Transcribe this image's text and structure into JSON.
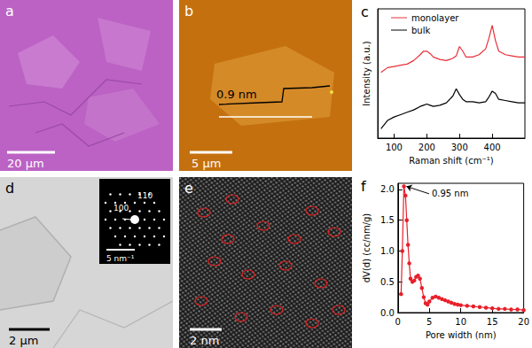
{
  "images": {
    "a": {
      "panel": "a",
      "scale_bar": "20 μm"
    },
    "b": {
      "panel": "b",
      "annotation": "0.9 nm",
      "scale_bar": "5 μm"
    },
    "d": {
      "panel": "d",
      "scale_bar": "2 μm",
      "inset": {
        "labels": [
          "110",
          "100"
        ],
        "scale_bar": "5 nm⁻¹"
      }
    },
    "e": {
      "panel": "e",
      "scale_bar": "2 nm"
    }
  },
  "chart_data": [
    {
      "panel": "c",
      "type": "line",
      "x_label": "Raman shift (cm⁻¹)",
      "y_label": "Intensity (a.u.)",
      "x": [
        60,
        80,
        100,
        120,
        140,
        160,
        180,
        190,
        200,
        210,
        220,
        240,
        260,
        280,
        290,
        300,
        310,
        320,
        340,
        360,
        380,
        390,
        400,
        410,
        420,
        440,
        460,
        480,
        500
      ],
      "series": [
        {
          "name": "monolayer",
          "color": "#e8303a",
          "marker": "none",
          "line_style": "solid",
          "values": [
            5.6,
            6.0,
            6.1,
            6.2,
            6.3,
            6.6,
            7.1,
            7.4,
            7.4,
            7.2,
            6.9,
            6.7,
            6.6,
            6.8,
            7.0,
            7.8,
            7.4,
            6.9,
            6.9,
            7.1,
            7.6,
            8.5,
            9.6,
            8.3,
            7.4,
            7.1,
            7.0,
            6.9,
            6.9
          ]
        },
        {
          "name": "bulk",
          "color": "#000000",
          "marker": "none",
          "line_style": "solid",
          "values": [
            0.8,
            1.5,
            1.8,
            2.0,
            2.2,
            2.4,
            2.7,
            2.8,
            2.9,
            2.8,
            2.7,
            2.8,
            3.0,
            3.6,
            4.2,
            3.7,
            3.3,
            3.1,
            3.1,
            3.0,
            3.1,
            3.5,
            4.0,
            3.8,
            3.3,
            3.2,
            3.1,
            3.0,
            3.0
          ]
        }
      ],
      "xlim": [
        50,
        500
      ],
      "xticks": [
        100,
        200,
        300,
        400
      ],
      "ylim": [
        0,
        11
      ],
      "tick_labels": "x",
      "legend": "upper left",
      "grid": false
    },
    {
      "panel": "f",
      "type": "line",
      "x_label": "Pore width (nm)",
      "y_label": "dV(d) (cc/nm/g)",
      "x": [
        0.5,
        0.7,
        0.95,
        1.2,
        1.4,
        1.6,
        1.8,
        2.0,
        2.3,
        2.6,
        2.9,
        3.2,
        3.5,
        3.8,
        4.1,
        4.4,
        4.7,
        5.0,
        5.5,
        6.0,
        6.5,
        7.0,
        7.5,
        8.0,
        8.5,
        9.0,
        9.5,
        10.0,
        11.0,
        12.0,
        13.0,
        14.0,
        15.0,
        16.0,
        17.0,
        18.0,
        19.0,
        20.0
      ],
      "values": [
        0.3,
        1.0,
        2.05,
        1.9,
        1.5,
        1.1,
        0.8,
        0.55,
        0.5,
        0.52,
        0.58,
        0.6,
        0.55,
        0.4,
        0.25,
        0.15,
        0.13,
        0.18,
        0.24,
        0.26,
        0.24,
        0.22,
        0.2,
        0.18,
        0.16,
        0.14,
        0.13,
        0.12,
        0.11,
        0.1,
        0.09,
        0.08,
        0.07,
        0.06,
        0.06,
        0.05,
        0.05,
        0.04
      ],
      "color": "#e8202a",
      "marker": "circle",
      "line_style": "solid",
      "annotation": {
        "text": "0.95 nm",
        "x": 0.95,
        "y": 2.05
      },
      "xlim": [
        0,
        20
      ],
      "xticks": [
        0,
        5,
        10,
        15,
        20
      ],
      "ylim": [
        0,
        2.1
      ],
      "yticks": [
        {
          "value": 0,
          "label": "0.0"
        },
        {
          "value": 0.5,
          "label": "0.5"
        },
        {
          "value": 1,
          "label": "1.0"
        },
        {
          "value": 1.5,
          "label": "1.5"
        },
        {
          "value": 2,
          "label": "2.0"
        }
      ],
      "grid": false
    }
  ]
}
